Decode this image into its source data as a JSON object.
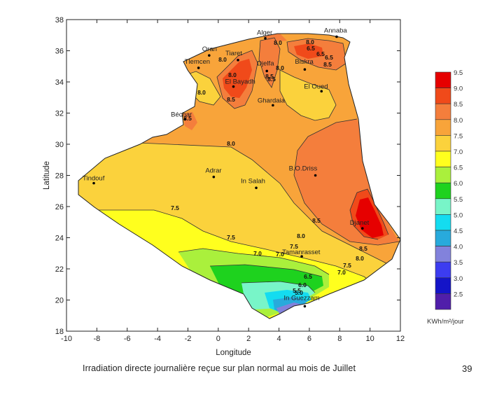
{
  "map": {
    "xlabel": "Longitude",
    "ylabel": "Latitude",
    "x_ticks": [
      "-10",
      "-8",
      "-6",
      "-4",
      "-2",
      "0",
      "2",
      "4",
      "6",
      "8",
      "10",
      "12"
    ],
    "y_ticks": [
      "18",
      "20",
      "22",
      "24",
      "26",
      "28",
      "30",
      "32",
      "34",
      "36",
      "38"
    ],
    "x_range": [
      -10,
      12
    ],
    "y_range": [
      18,
      38
    ]
  },
  "cities": [
    {
      "name": "Alger",
      "lon": 3.1,
      "lat": 36.8
    },
    {
      "name": "Annaba",
      "lon": 7.8,
      "lat": 36.9
    },
    {
      "name": "Oran",
      "lon": -0.6,
      "lat": 35.7
    },
    {
      "name": "Tiaret",
      "lon": 1.3,
      "lat": 35.4
    },
    {
      "name": "Tlemcen",
      "lon": -1.3,
      "lat": 34.9
    },
    {
      "name": "Djelfa",
      "lon": 3.2,
      "lat": 34.7
    },
    {
      "name": "Biskra",
      "lon": 5.7,
      "lat": 34.8
    },
    {
      "name": "El Bayadh",
      "lon": 1.0,
      "lat": 33.7
    },
    {
      "name": "El Oued",
      "lon": 6.8,
      "lat": 33.4
    },
    {
      "name": "Ghardaia",
      "lon": 3.6,
      "lat": 32.5
    },
    {
      "name": "Béchar",
      "lon": -2.2,
      "lat": 31.6
    },
    {
      "name": "Adrar",
      "lon": -0.3,
      "lat": 27.9
    },
    {
      "name": "Tindouf",
      "lon": -8.2,
      "lat": 27.5
    },
    {
      "name": "In Salah",
      "lon": 2.5,
      "lat": 27.2
    },
    {
      "name": "B.O.Driss",
      "lon": 6.4,
      "lat": 28.0
    },
    {
      "name": "Djanet",
      "lon": 9.5,
      "lat": 24.6
    },
    {
      "name": "Tamanrasset",
      "lon": 5.5,
      "lat": 22.8
    },
    {
      "name": "In Guezzam",
      "lon": 5.7,
      "lat": 19.6
    }
  ],
  "contour_labels": [
    "8.0",
    "8.0",
    "8.0",
    "8.0",
    "8.0",
    "8.0",
    "8.5",
    "8.5",
    "8.5",
    "6.5",
    "6.5",
    "6.5",
    "8.0",
    "7.5",
    "7.5",
    "7.0",
    "7.0",
    "7.5",
    "8.5",
    "8.0",
    "8.5",
    "8.0",
    "7.5",
    "7.0",
    "6.5",
    "6.0",
    "5.5",
    "5.0",
    "8.5",
    "8.5"
  ],
  "legend": {
    "levels": [
      {
        "label": "9.5",
        "color": "#e60000"
      },
      {
        "label": "9.0",
        "color": "#f04a1a"
      },
      {
        "label": "8.5",
        "color": "#f47e3c"
      },
      {
        "label": "8.0",
        "color": "#f8a43a"
      },
      {
        "label": "7.5",
        "color": "#fbd23c"
      },
      {
        "label": "7.0",
        "color": "#ffff1e"
      },
      {
        "label": "6.5",
        "color": "#aaf03c"
      },
      {
        "label": "6.0",
        "color": "#1ed21e"
      },
      {
        "label": "5.5",
        "color": "#78f5c8"
      },
      {
        "label": "5.0",
        "color": "#14dcf0"
      },
      {
        "label": "4.5",
        "color": "#28aadc"
      },
      {
        "label": "4.0",
        "color": "#8282dc"
      },
      {
        "label": "3.5",
        "color": "#3c3cf0"
      },
      {
        "label": "3.0",
        "color": "#1414c8"
      },
      {
        "label": "2.5",
        "color": "#501eaa"
      }
    ],
    "unit": "KWh/m²/jour"
  },
  "caption": "Irradiation directe journalière reçue sur plan normal au mois de Juillet",
  "page_number": "39"
}
